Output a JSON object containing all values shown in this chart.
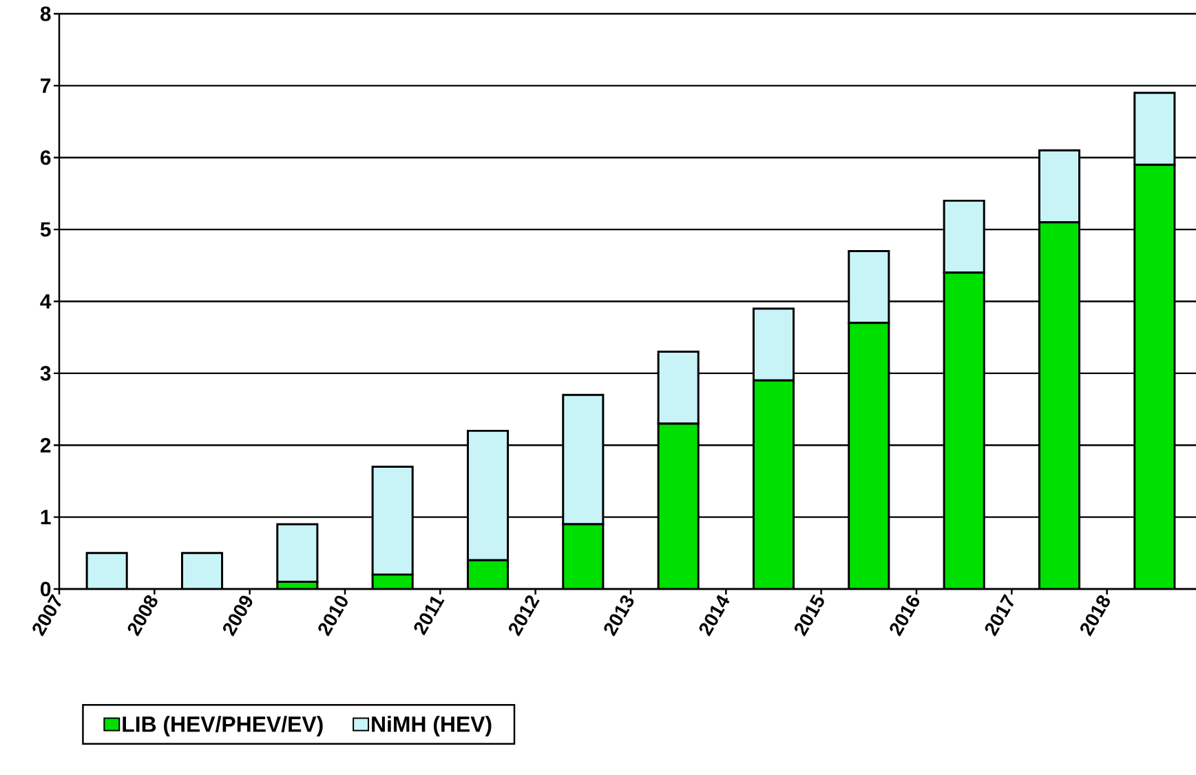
{
  "chart_data": {
    "type": "bar",
    "stacked": true,
    "categories": [
      "2007",
      "2008",
      "2009",
      "2010",
      "2011",
      "2012",
      "2013",
      "2014",
      "2015",
      "2016",
      "2017",
      "2018"
    ],
    "series": [
      {
        "name": "LIB (HEV/PHEV/EV)",
        "color": "#00e000",
        "values": [
          0,
          0,
          0.1,
          0.2,
          0.4,
          0.9,
          2.3,
          2.9,
          3.7,
          4.4,
          5.1,
          5.9
        ]
      },
      {
        "name": "NiMH (HEV)",
        "color": "#c8f4f8",
        "values": [
          0.5,
          0.5,
          0.8,
          1.5,
          1.8,
          1.8,
          1.0,
          1.0,
          1.0,
          1.0,
          1.0,
          1.0
        ]
      }
    ],
    "ylim": [
      0,
      8
    ],
    "yticks": [
      0,
      1,
      2,
      3,
      4,
      5,
      6,
      7,
      8
    ],
    "grid": "y",
    "legend": "bottom"
  }
}
